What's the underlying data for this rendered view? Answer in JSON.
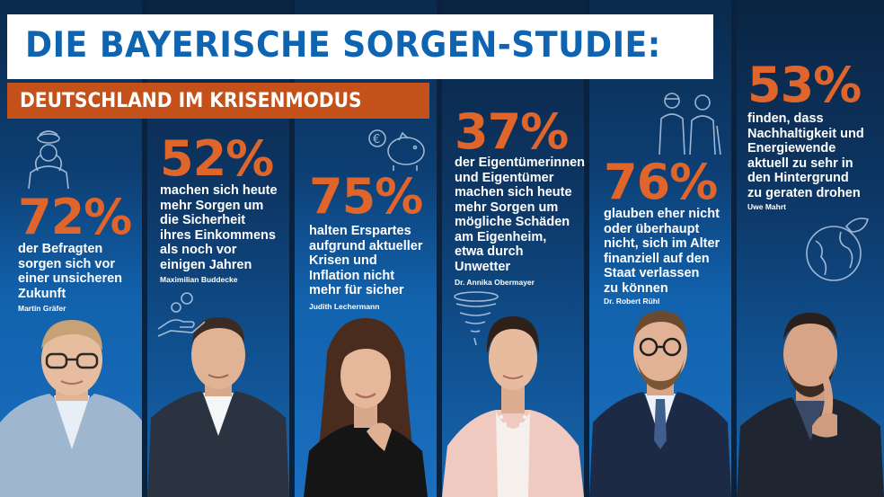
{
  "header": {
    "title": "DIE BAYERISCHE SORGEN-STUDIE:",
    "subtitle": "DEUTSCHLAND IM KRISENMODUS"
  },
  "colors": {
    "title_blue": "#0f64b2",
    "accent_orange": "#e0652a",
    "subtitle_bg": "#c4511a",
    "column_blue": "#1262ad"
  },
  "columns": [
    {
      "percent": "72%",
      "lines": [
        "der Befragten",
        "sorgen sich vor",
        "einer unsicheren",
        "Zukunft"
      ],
      "author": "Martin Gräfer",
      "icon": "worried-person-icon"
    },
    {
      "percent": "52%",
      "lines": [
        "machen sich heute",
        "mehr Sorgen um",
        "die Sicherheit",
        "ihres Einkommens",
        "als noch vor",
        "einigen Jahren"
      ],
      "author": "Maximilian Buddecke",
      "icon": "hand-coins-icon"
    },
    {
      "percent": "75%",
      "lines": [
        "halten Erspartes",
        "aufgrund aktueller",
        "Krisen und",
        "Inflation nicht",
        "mehr für sicher"
      ],
      "author": "Judith Lechermann",
      "icon": "piggy-bank-icon"
    },
    {
      "percent": "37%",
      "lines": [
        "der Eigentümerinnen",
        "und Eigentümer",
        "machen sich heute",
        "mehr Sorgen um",
        "mögliche Schäden",
        "am Eigenheim,",
        "etwa durch",
        "Unwetter"
      ],
      "author": "Dr. Annika Obermayer",
      "icon": "tornado-icon"
    },
    {
      "percent": "76%",
      "lines": [
        "glauben eher nicht",
        "oder überhaupt",
        "nicht, sich im Alter",
        "finanziell auf den",
        "Staat verlassen",
        "zu können"
      ],
      "author": "Dr. Robert Rühl",
      "icon": "elderly-couple-icon"
    },
    {
      "percent": "53%",
      "lines": [
        "finden, dass",
        "Nachhaltigkeit und",
        "Energiewende",
        "aktuell zu sehr in",
        "den Hintergrund",
        "zu geraten drohen"
      ],
      "author": "Uwe Mahrt",
      "icon": "globe-leaves-icon"
    }
  ]
}
